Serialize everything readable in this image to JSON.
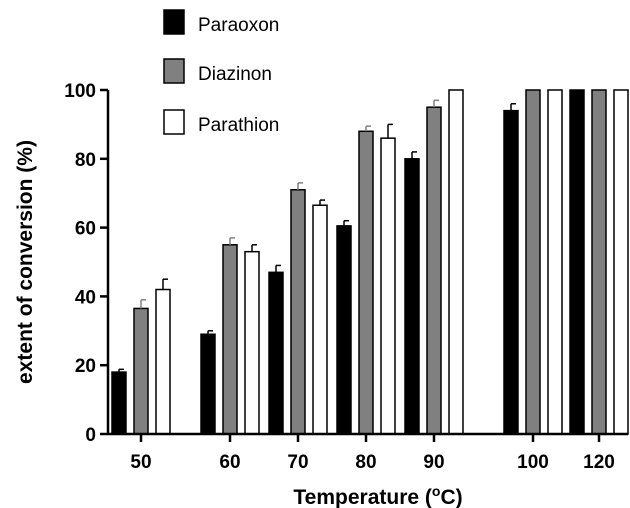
{
  "chart_data": {
    "type": "bar",
    "title": "",
    "xlabel": "Temperature (",
    "xlabel_sup": "o",
    "xlabel_suffix": "C)",
    "ylabel": "extent of conversion (%)",
    "ylim": [
      0,
      100
    ],
    "yticks": [
      0,
      20,
      40,
      60,
      80,
      100
    ],
    "categories": [
      "50",
      "60",
      "70",
      "80",
      "90",
      "100",
      "120"
    ],
    "legend_position": "top-left",
    "grid": false,
    "series": [
      {
        "name": "Paraoxon",
        "color": "#000000",
        "values": [
          18,
          29,
          47,
          60.5,
          80,
          94,
          100
        ],
        "errors": [
          0.8,
          1,
          2,
          1.5,
          2,
          2,
          0
        ]
      },
      {
        "name": "Diazinon",
        "color": "#808080",
        "values": [
          36.5,
          55,
          71,
          88,
          95,
          100,
          100
        ],
        "errors": [
          2.5,
          2,
          2,
          1.5,
          2,
          0,
          0
        ]
      },
      {
        "name": "Parathion",
        "color": "#ffffff",
        "values": [
          42,
          53,
          66.5,
          86,
          100,
          100,
          100
        ],
        "errors": [
          3,
          2,
          1.5,
          4,
          0,
          0,
          0
        ]
      }
    ]
  }
}
